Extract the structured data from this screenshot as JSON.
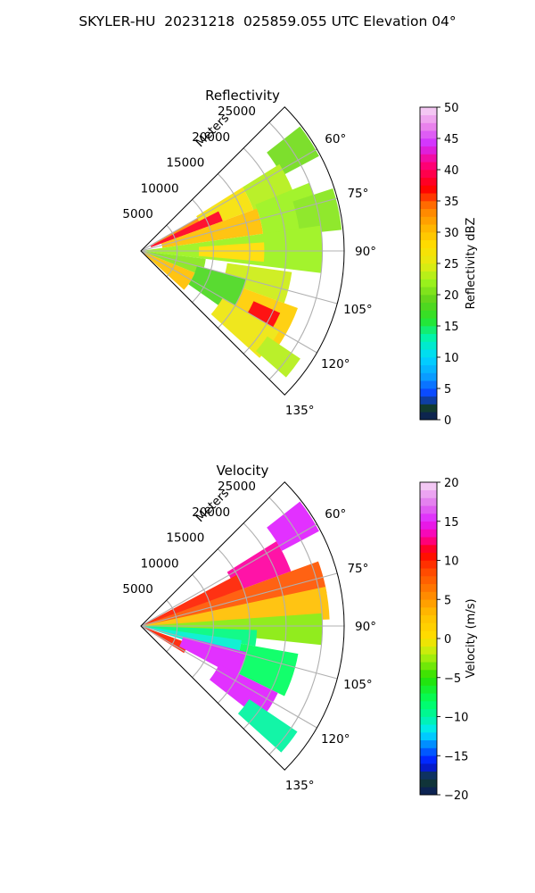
{
  "suptitle": "SKYLER-HU  20231218  025859.055 UTC Elevation 04°",
  "chart_data": [
    {
      "type": "polar-sector",
      "title": "Reflectivity",
      "radial_label": "Meters",
      "range_ticks": [
        "5000",
        "10000",
        "15000",
        "20000",
        "25000"
      ],
      "azimuth_ticks": [
        "60°",
        "75°",
        "90°",
        "105°",
        "120°",
        "135°"
      ],
      "azimuth_range_deg": [
        45,
        135
      ],
      "range_max_m": 28000,
      "colorbar": {
        "label": "Reflectivity dBZ",
        "ticks": [
          "0",
          "5",
          "10",
          "15",
          "20",
          "25",
          "30",
          "35",
          "40",
          "45",
          "50"
        ],
        "min": 0,
        "max": 50
      },
      "echo_patches": [
        {
          "az": [
            52,
            62
          ],
          "r": [
            22000,
            27800
          ],
          "value": 20
        },
        {
          "az": [
            58,
            72
          ],
          "r": [
            16500,
            22500
          ],
          "value": 23
        },
        {
          "az": [
            58,
            70
          ],
          "r": [
            9000,
            16500
          ],
          "value": 27
        },
        {
          "az": [
            60,
            70
          ],
          "r": [
            2000,
            9000
          ],
          "value": 33
        },
        {
          "az": [
            63,
            70
          ],
          "r": [
            1500,
            12000
          ],
          "value": 38
        },
        {
          "az": [
            70,
            82
          ],
          "r": [
            3000,
            17000
          ],
          "value": 30
        },
        {
          "az": [
            68,
            84
          ],
          "r": [
            17000,
            25000
          ],
          "value": 22
        },
        {
          "az": [
            72,
            84
          ],
          "r": [
            22000,
            27800
          ],
          "value": 21
        },
        {
          "az": [
            82,
            97
          ],
          "r": [
            0,
            25000
          ],
          "value": 22
        },
        {
          "az": [
            86,
            95
          ],
          "r": [
            8000,
            17000
          ],
          "value": 28
        },
        {
          "az": [
            97,
            112
          ],
          "r": [
            0,
            9000
          ],
          "value": 21
        },
        {
          "az": [
            98,
            110
          ],
          "r": [
            12000,
            21000
          ],
          "value": 24
        },
        {
          "az": [
            105,
            125
          ],
          "r": [
            8000,
            15000
          ],
          "value": 18
        },
        {
          "az": [
            112,
            132
          ],
          "r": [
            0,
            8000
          ],
          "value": 30
        },
        {
          "az": [
            110,
            125
          ],
          "r": [
            15000,
            23000
          ],
          "value": 29
        },
        {
          "az": [
            114,
            122
          ],
          "r": [
            17000,
            21000
          ],
          "value": 37
        },
        {
          "az": [
            120,
            132
          ],
          "r": [
            13000,
            22000
          ],
          "value": 26
        },
        {
          "az": [
            124,
            131
          ],
          "r": [
            21000,
            26500
          ],
          "value": 23
        }
      ]
    },
    {
      "type": "polar-sector",
      "title": "Velocity",
      "radial_label": "Meters",
      "range_ticks": [
        "5000",
        "10000",
        "15000",
        "20000",
        "25000"
      ],
      "azimuth_ticks": [
        "60°",
        "75°",
        "90°",
        "105°",
        "120°",
        "135°"
      ],
      "azimuth_range_deg": [
        45,
        135
      ],
      "range_max_m": 28000,
      "colorbar": {
        "label": "Velocity (m/s)",
        "ticks": [
          "−20",
          "−15",
          "−10",
          "−5",
          "0",
          "5",
          "10",
          "15",
          "20"
        ],
        "min": -20,
        "max": 20
      },
      "echo_patches": [
        {
          "az": [
            52,
            62
          ],
          "r": [
            22000,
            27800
          ],
          "value": 15
        },
        {
          "az": [
            58,
            70
          ],
          "r": [
            14000,
            22000
          ],
          "value": 13
        },
        {
          "az": [
            62,
            72
          ],
          "r": [
            0,
            15000
          ],
          "value": 10
        },
        {
          "az": [
            70,
            80
          ],
          "r": [
            0,
            26000
          ],
          "value": 8
        },
        {
          "az": [
            78,
            88
          ],
          "r": [
            0,
            26000
          ],
          "value": 3
        },
        {
          "az": [
            86,
            96
          ],
          "r": [
            0,
            25000
          ],
          "value": -3
        },
        {
          "az": [
            92,
            100
          ],
          "r": [
            0,
            16000
          ],
          "value": -9
        },
        {
          "az": [
            98,
            108
          ],
          "r": [
            0,
            14000
          ],
          "value": -11
        },
        {
          "az": [
            100,
            116
          ],
          "r": [
            14000,
            22000
          ],
          "value": -8
        },
        {
          "az": [
            110,
            122
          ],
          "r": [
            0,
            7000
          ],
          "value": 10
        },
        {
          "az": [
            104,
            118
          ],
          "r": [
            6000,
            15000
          ],
          "value": 15
        },
        {
          "az": [
            116,
            128
          ],
          "r": [
            12000,
            21000
          ],
          "value": 15
        },
        {
          "az": [
            124,
            132
          ],
          "r": [
            18000,
            26000
          ],
          "value": -10
        }
      ]
    }
  ]
}
